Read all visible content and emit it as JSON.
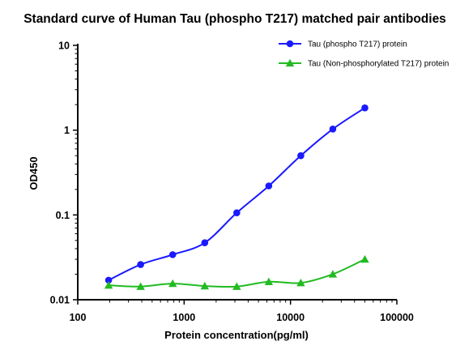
{
  "chart_data": {
    "type": "scatter",
    "title": "Standard curve of Human Tau (phospho T217) matched pair antibodies",
    "xlabel": "Protein concentration(pg/ml)",
    "ylabel": "OD450",
    "xscale": "log",
    "yscale": "log",
    "xlim": [
      100,
      100000
    ],
    "ylim": [
      0.01,
      10
    ],
    "x_ticks": [
      "100",
      "1000",
      "10000",
      "100000"
    ],
    "y_ticks": [
      "0.01",
      "0.1",
      "1",
      "10"
    ],
    "grid": false,
    "legend_position": "top-right",
    "series": [
      {
        "name": "Tau (phospho T217)  protein",
        "color": "#1a1aff",
        "marker": "circle",
        "x": [
          195,
          390,
          781,
          1563,
          3125,
          6250,
          12500,
          25000,
          50000
        ],
        "y": [
          0.017,
          0.026,
          0.034,
          0.047,
          0.106,
          0.22,
          0.5,
          1.03,
          1.83
        ]
      },
      {
        "name": "Tau (Non-phosphorylated T217) protein",
        "color": "#22bb22",
        "marker": "triangle",
        "x": [
          195,
          390,
          781,
          1563,
          3125,
          6250,
          12500,
          25000,
          50000
        ],
        "y": [
          0.0148,
          0.0143,
          0.0155,
          0.0145,
          0.0143,
          0.0163,
          0.0158,
          0.02,
          0.03
        ]
      }
    ]
  }
}
